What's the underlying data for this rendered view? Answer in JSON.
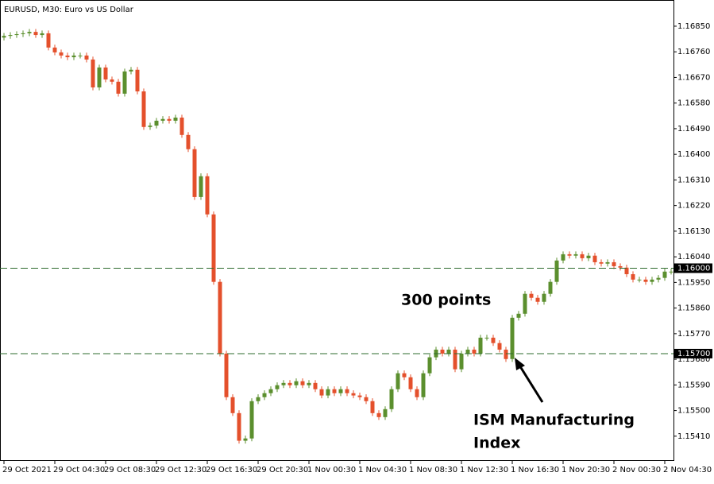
{
  "chart_data": {
    "type": "candlestick",
    "title": "EURUSD, M30:  Euro vs US Dollar",
    "categories": [
      "29 Oct 2021",
      null,
      null,
      null,
      null,
      null,
      null,
      null,
      "29 Oct 04:30",
      null,
      null,
      null,
      null,
      null,
      null,
      null,
      "29 Oct 08:30",
      null,
      null,
      null,
      null,
      null,
      null,
      null,
      "29 Oct 12:30",
      null,
      null,
      null,
      null,
      null,
      null,
      null,
      "29 Oct 16:30",
      null,
      null,
      null,
      null,
      null,
      null,
      null,
      "29 Oct 20:30",
      null,
      null,
      null,
      null,
      null,
      null,
      null,
      "1 Nov 00:30",
      null,
      null,
      null,
      null,
      null,
      null,
      null,
      "1 Nov 04:30",
      null,
      null,
      null,
      null,
      null,
      null,
      null,
      "1 Nov 08:30",
      null,
      null,
      null,
      null,
      null,
      null,
      null,
      "1 Nov 12:30",
      null,
      null,
      null,
      null,
      null,
      null,
      null,
      "1 Nov 16:30",
      null,
      null,
      null,
      null,
      null,
      null,
      null,
      "1 Nov 20:30",
      null,
      null,
      null,
      null,
      null,
      null,
      null,
      "2 Nov 00:30",
      null,
      null,
      null,
      null,
      null,
      null,
      null,
      "2 Nov 04:30",
      null
    ],
    "open": [
      1.1681,
      1.16816,
      1.16819,
      1.16822,
      1.16825,
      1.1683,
      1.16819,
      1.16825,
      1.16775,
      1.16758,
      1.16747,
      1.16741,
      1.16747,
      1.16747,
      1.16733,
      1.16635,
      1.16705,
      1.16663,
      1.16655,
      1.16613,
      1.16691,
      1.16697,
      1.16621,
      1.16496,
      1.16501,
      1.16518,
      1.16524,
      1.16518,
      1.16529,
      1.16468,
      1.16418,
      1.1625,
      1.16323,
      1.16189,
      1.15952,
      1.157,
      1.15547,
      1.15491,
      1.15394,
      1.15402,
      1.15533,
      1.15547,
      1.15561,
      1.15575,
      1.15589,
      1.15597,
      1.15589,
      1.15603,
      1.15589,
      1.15597,
      1.15575,
      1.15553,
      1.15575,
      1.15561,
      1.15575,
      1.15561,
      1.15553,
      1.15547,
      1.15533,
      1.15491,
      1.15477,
      1.15505,
      1.15575,
      1.15631,
      1.15617,
      1.15575,
      1.15547,
      1.15631,
      1.15687,
      1.15714,
      1.157,
      1.15714,
      1.15645,
      1.157,
      1.15714,
      1.157,
      1.15756,
      1.15756,
      1.15737,
      1.15714,
      1.15681,
      1.15826,
      1.1584,
      1.1591,
      1.15896,
      1.15882,
      1.1591,
      1.15952,
      1.16027,
      1.16049,
      1.16044,
      1.16049,
      1.16035,
      1.16044,
      1.16021,
      1.16016,
      1.16021,
      1.16007,
      1.16002,
      1.15979,
      1.1596,
      1.1596,
      1.15952,
      1.1596,
      1.15966,
      1.15988
    ],
    "high": [
      1.16826,
      1.16829,
      1.16832,
      1.16835,
      1.1684,
      1.1684,
      1.16835,
      1.16835,
      1.16785,
      1.16768,
      1.16757,
      1.16757,
      1.16757,
      1.16757,
      1.16743,
      1.16715,
      1.16715,
      1.16673,
      1.16665,
      1.16701,
      1.16707,
      1.16707,
      1.16631,
      1.16511,
      1.16528,
      1.16534,
      1.16534,
      1.16539,
      1.16539,
      1.16478,
      1.16428,
      1.16333,
      1.16333,
      1.16199,
      1.15962,
      1.1571,
      1.15557,
      1.15501,
      1.15412,
      1.15543,
      1.15557,
      1.15571,
      1.15585,
      1.15599,
      1.15607,
      1.15607,
      1.15613,
      1.15613,
      1.15607,
      1.15607,
      1.15585,
      1.15585,
      1.15585,
      1.15585,
      1.15585,
      1.15571,
      1.15563,
      1.15557,
      1.15543,
      1.15501,
      1.15515,
      1.15585,
      1.15641,
      1.15641,
      1.15627,
      1.15585,
      1.15641,
      1.15697,
      1.15724,
      1.15724,
      1.15724,
      1.15724,
      1.1571,
      1.15724,
      1.15724,
      1.15766,
      1.15766,
      1.15766,
      1.15747,
      1.15724,
      1.15836,
      1.1585,
      1.1592,
      1.1592,
      1.15906,
      1.1592,
      1.15962,
      1.16037,
      1.16059,
      1.16059,
      1.16059,
      1.16059,
      1.16054,
      1.16054,
      1.16031,
      1.16031,
      1.16031,
      1.16017,
      1.16012,
      1.15989,
      1.1597,
      1.1597,
      1.1597,
      1.15976,
      1.15998,
      1.15998
    ],
    "low": [
      1.168,
      1.16806,
      1.16809,
      1.16812,
      1.16815,
      1.16809,
      1.16809,
      1.16765,
      1.16748,
      1.16737,
      1.16731,
      1.16731,
      1.16737,
      1.16723,
      1.16625,
      1.16625,
      1.16653,
      1.16645,
      1.16603,
      1.16603,
      1.16681,
      1.16611,
      1.16486,
      1.16486,
      1.16491,
      1.16508,
      1.16508,
      1.16508,
      1.16458,
      1.16408,
      1.1624,
      1.1624,
      1.16179,
      1.15942,
      1.1569,
      1.15537,
      1.15481,
      1.15384,
      1.15384,
      1.15392,
      1.15523,
      1.15537,
      1.15551,
      1.15565,
      1.15579,
      1.15579,
      1.15579,
      1.15579,
      1.15579,
      1.15565,
      1.15543,
      1.15543,
      1.15551,
      1.15551,
      1.15551,
      1.15543,
      1.15537,
      1.15523,
      1.15481,
      1.15467,
      1.15467,
      1.15495,
      1.15565,
      1.15607,
      1.15565,
      1.15537,
      1.15537,
      1.15621,
      1.15677,
      1.1569,
      1.1569,
      1.15635,
      1.15635,
      1.1569,
      1.1569,
      1.1569,
      1.15746,
      1.15727,
      1.15704,
      1.15671,
      1.15671,
      1.15816,
      1.1583,
      1.15886,
      1.15872,
      1.15872,
      1.159,
      1.15942,
      1.16017,
      1.16034,
      1.16034,
      1.16025,
      1.16025,
      1.16011,
      1.16006,
      1.16006,
      1.15997,
      1.15992,
      1.15969,
      1.1595,
      1.1595,
      1.15942,
      1.15942,
      1.1595,
      1.15956,
      1.15978
    ],
    "close": [
      1.16816,
      1.16819,
      1.16822,
      1.16825,
      1.1683,
      1.16819,
      1.16825,
      1.16775,
      1.16758,
      1.16747,
      1.16741,
      1.16747,
      1.16747,
      1.16733,
      1.16635,
      1.16705,
      1.16663,
      1.16655,
      1.16613,
      1.16691,
      1.16697,
      1.16621,
      1.16496,
      1.16501,
      1.16518,
      1.16524,
      1.16518,
      1.16529,
      1.16468,
      1.16418,
      1.1625,
      1.16323,
      1.16189,
      1.15952,
      1.157,
      1.15547,
      1.15491,
      1.15394,
      1.15402,
      1.15533,
      1.15547,
      1.15561,
      1.15575,
      1.15589,
      1.15597,
      1.15589,
      1.15603,
      1.15589,
      1.15597,
      1.15575,
      1.15553,
      1.15575,
      1.15561,
      1.15575,
      1.15561,
      1.15553,
      1.15547,
      1.15533,
      1.15491,
      1.15477,
      1.15505,
      1.15575,
      1.15631,
      1.15617,
      1.15575,
      1.15547,
      1.15631,
      1.15687,
      1.15714,
      1.157,
      1.15714,
      1.15645,
      1.157,
      1.15714,
      1.157,
      1.15756,
      1.15756,
      1.15737,
      1.15714,
      1.15681,
      1.15826,
      1.1584,
      1.1591,
      1.15896,
      1.15882,
      1.1591,
      1.15952,
      1.16027,
      1.16049,
      1.16044,
      1.16049,
      1.16035,
      1.16044,
      1.16021,
      1.16016,
      1.16021,
      1.16007,
      1.16002,
      1.15979,
      1.1596,
      1.1596,
      1.15952,
      1.1596,
      1.15966,
      1.15988,
      1.15988
    ],
    "up_color": "#5b8f2e",
    "down_color": "#e4502c",
    "ylim": [
      1.15323,
      1.16942
    ],
    "yticks": [
      {
        "value": 1.1685,
        "label": "1.16850"
      },
      {
        "value": 1.1676,
        "label": "1.16760"
      },
      {
        "value": 1.1667,
        "label": "1.16670"
      },
      {
        "value": 1.1658,
        "label": "1.16580"
      },
      {
        "value": 1.1649,
        "label": "1.16490"
      },
      {
        "value": 1.164,
        "label": "1.16400"
      },
      {
        "value": 1.1631,
        "label": "1.16310"
      },
      {
        "value": 1.1622,
        "label": "1.16220"
      },
      {
        "value": 1.1613,
        "label": "1.16130"
      },
      {
        "value": 1.1604,
        "label": "1.16040"
      },
      {
        "value": 1.1595,
        "label": "1.15950"
      },
      {
        "value": 1.1586,
        "label": "1.15860"
      },
      {
        "value": 1.1577,
        "label": "1.15770"
      },
      {
        "value": 1.1568,
        "label": "1.15680"
      },
      {
        "value": 1.1559,
        "label": "1.15590"
      },
      {
        "value": 1.155,
        "label": "1.15500"
      },
      {
        "value": 1.1541,
        "label": "1.15410"
      }
    ],
    "levels": [
      {
        "value": 1.16,
        "label": "1.16000"
      },
      {
        "value": 1.157,
        "label": "1.15700"
      }
    ],
    "level_color": "#2e6b2e",
    "grid": false,
    "annotations": [
      [
        "300 points"
      ],
      [
        "ISM Manufacturing",
        "Index"
      ]
    ]
  }
}
